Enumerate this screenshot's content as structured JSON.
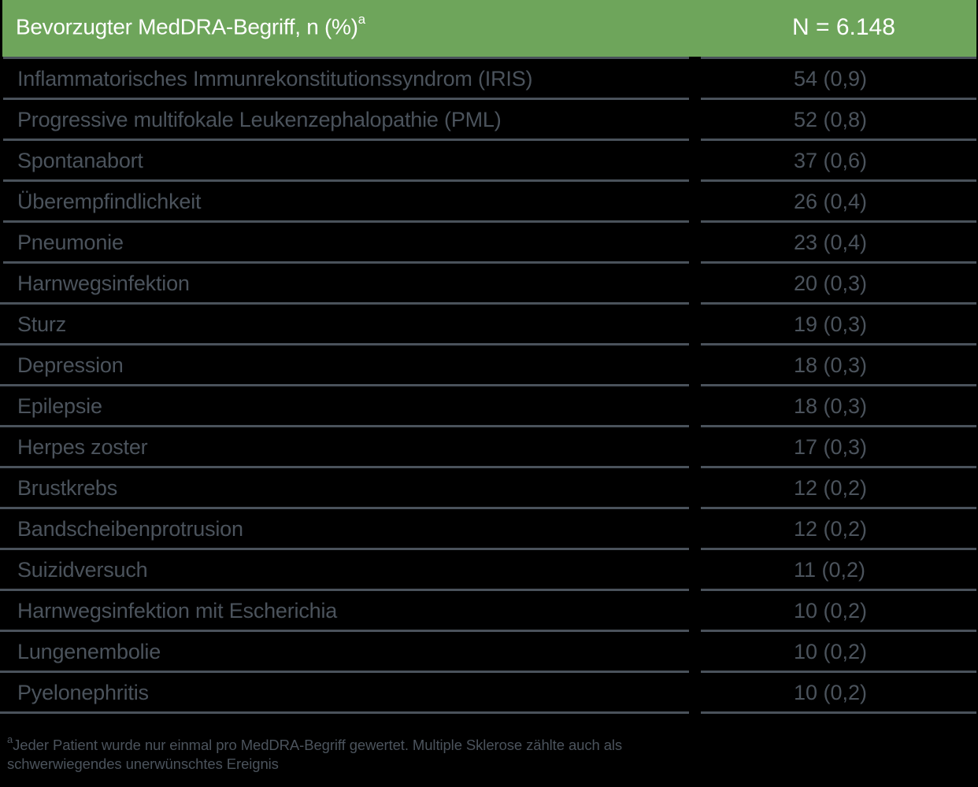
{
  "table": {
    "header": {
      "term_label": "Bevorzugter MedDRA-Begriff, n (%)",
      "term_footnote_marker": "a",
      "n_label": "N = 6.148"
    },
    "rows": [
      {
        "term": "Inflammatorisches Immunrekonstitutionssyndrom (IRIS)",
        "value": "54 (0,9)"
      },
      {
        "term": "Progressive multifokale Leukenzephalopathie (PML)",
        "value": "52 (0,8)"
      },
      {
        "term": "Spontanabort",
        "value": "37 (0,6)"
      },
      {
        "term": "Überempfindlichkeit",
        "value": "26 (0,4)"
      },
      {
        "term": "Pneumonie",
        "value": "23 (0,4)"
      },
      {
        "term": "Harnwegsinfektion",
        "value": "20 (0,3)"
      },
      {
        "term": "Sturz",
        "value": "19 (0,3)"
      },
      {
        "term": "Depression",
        "value": "18 (0,3)"
      },
      {
        "term": "Epilepsie",
        "value": "18 (0,3)"
      },
      {
        "term": "Herpes zoster",
        "value": "17 (0,3)"
      },
      {
        "term": "Brustkrebs",
        "value": "12 (0,2)"
      },
      {
        "term": "Bandscheibenprotrusion",
        "value": "12 (0,2)"
      },
      {
        "term": "Suizidversuch",
        "value": "11 (0,2)"
      },
      {
        "term": "Harnwegsinfektion mit Escherichia",
        "value": "10 (0,2)"
      },
      {
        "term": "Lungenembolie",
        "value": "10 (0,2)"
      },
      {
        "term": "Pyelonephritis",
        "value": "10 (0,2)"
      }
    ]
  },
  "footnote": {
    "marker": "a",
    "line1": "Jeder Patient wurde nur einmal pro MedDRA-Begriff gewertet. Multiple Sklerose zählte auch als",
    "line2": "schwerwiegendes unerwünschtes Ereignis"
  },
  "colors": {
    "header_bg": "#6ea55b",
    "header_text": "#ffffff",
    "rule": "#4a525b",
    "body_text": "#4b535c",
    "background": "#000000"
  }
}
